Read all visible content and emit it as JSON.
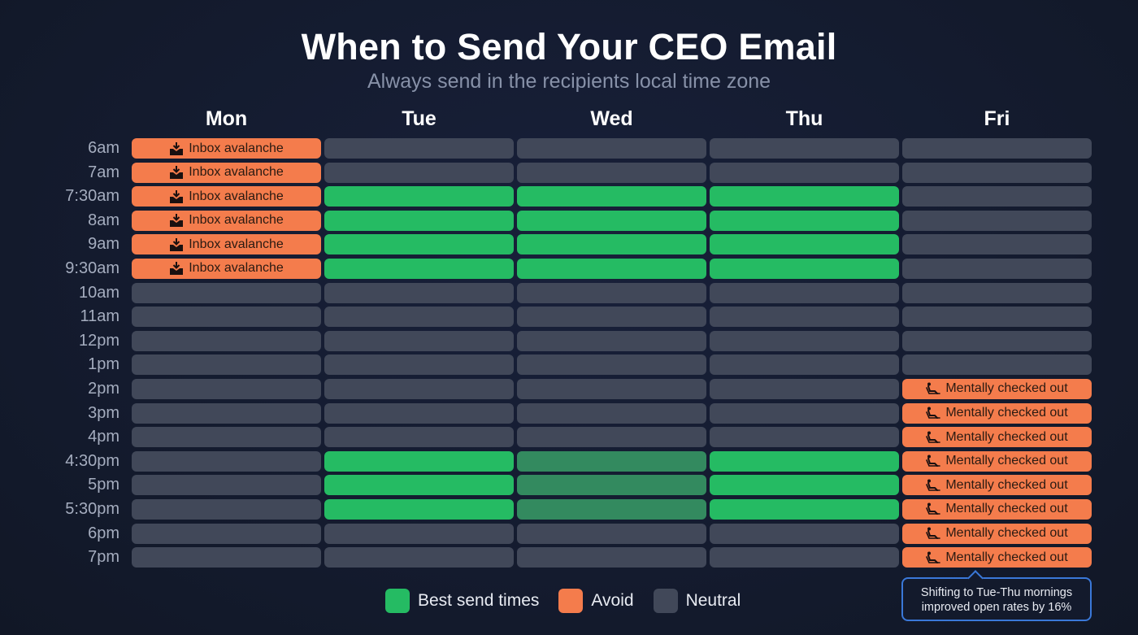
{
  "header": {
    "title": "When to Send Your CEO Email",
    "subtitle": "Always send in the recipients local time zone"
  },
  "days": [
    "Mon",
    "Tue",
    "Wed",
    "Thu",
    "Fri"
  ],
  "times": [
    "6am",
    "7am",
    "7:30am",
    "8am",
    "9am",
    "9:30am",
    "10am",
    "11am",
    "12pm",
    "1pm",
    "2pm",
    "3pm",
    "4pm",
    "4:30pm",
    "5pm",
    "5:30pm",
    "6pm",
    "7pm"
  ],
  "labels": {
    "avalanche": "Inbox avalanche",
    "checked_out": "Mentally checked out"
  },
  "legend": {
    "best": "Best send times",
    "avoid": "Avoid",
    "neutral": "Neutral"
  },
  "callout": {
    "line1": "Shifting to Tue-Thu mornings",
    "line2": "improved open rates by 16%"
  },
  "colors": {
    "background": "#141b2e",
    "best": "#25bb63",
    "best_dim": "#338a5f",
    "avoid": "#f47c4c",
    "neutral": "#414859",
    "callout_border": "#3a78d8"
  },
  "chart_data": {
    "type": "heatmap",
    "title": "When to Send Your CEO Email",
    "subtitle": "Always send in the recipients local time zone",
    "x": [
      "Mon",
      "Tue",
      "Wed",
      "Thu",
      "Fri"
    ],
    "y": [
      "6am",
      "7am",
      "7:30am",
      "8am",
      "9am",
      "9:30am",
      "10am",
      "11am",
      "12pm",
      "1pm",
      "2pm",
      "3pm",
      "4pm",
      "4:30pm",
      "5pm",
      "5:30pm",
      "6pm",
      "7pm"
    ],
    "categories_legend": [
      "Best send times",
      "Avoid",
      "Neutral"
    ],
    "legend_position": "bottom",
    "values": [
      [
        "avoid",
        "neutral",
        "neutral",
        "neutral",
        "neutral"
      ],
      [
        "avoid",
        "neutral",
        "neutral",
        "neutral",
        "neutral"
      ],
      [
        "avoid",
        "best",
        "best",
        "best",
        "neutral"
      ],
      [
        "avoid",
        "best",
        "best",
        "best",
        "neutral"
      ],
      [
        "avoid",
        "best",
        "best",
        "best",
        "neutral"
      ],
      [
        "avoid",
        "best",
        "best",
        "best",
        "neutral"
      ],
      [
        "neutral",
        "neutral",
        "neutral",
        "neutral",
        "neutral"
      ],
      [
        "neutral",
        "neutral",
        "neutral",
        "neutral",
        "neutral"
      ],
      [
        "neutral",
        "neutral",
        "neutral",
        "neutral",
        "neutral"
      ],
      [
        "neutral",
        "neutral",
        "neutral",
        "neutral",
        "neutral"
      ],
      [
        "neutral",
        "neutral",
        "neutral",
        "neutral",
        "avoid"
      ],
      [
        "neutral",
        "neutral",
        "neutral",
        "neutral",
        "avoid"
      ],
      [
        "neutral",
        "neutral",
        "neutral",
        "neutral",
        "avoid"
      ],
      [
        "neutral",
        "best",
        "best-dim",
        "best",
        "avoid"
      ],
      [
        "neutral",
        "best",
        "best-dim",
        "best",
        "avoid"
      ],
      [
        "neutral",
        "best",
        "best-dim",
        "best",
        "avoid"
      ],
      [
        "neutral",
        "neutral",
        "neutral",
        "neutral",
        "avoid"
      ],
      [
        "neutral",
        "neutral",
        "neutral",
        "neutral",
        "avoid"
      ]
    ],
    "cell_annotations": {
      "Mon 6am-9:30am": "Inbox avalanche",
      "Fri 2pm-7pm": "Mentally checked out"
    },
    "annotation": "Shifting to Tue-Thu mornings improved open rates by 16%"
  }
}
